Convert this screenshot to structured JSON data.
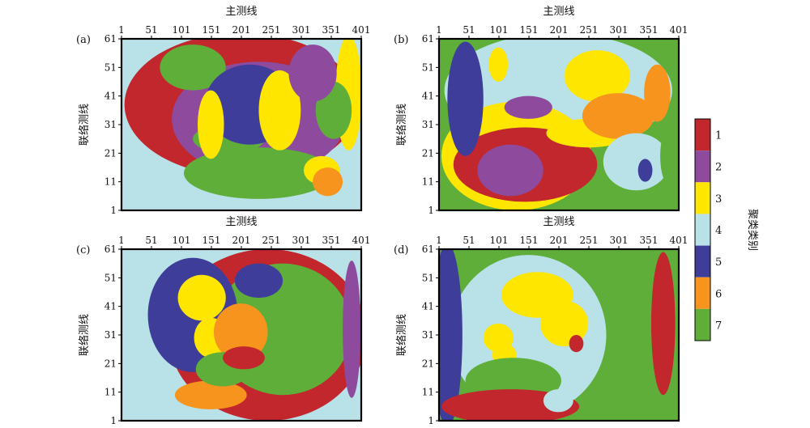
{
  "chart_data": {
    "type": "heatmap",
    "xlabel": "主测线",
    "ylabel": "联络测线",
    "xticks": [
      "1",
      "51",
      "101",
      "151",
      "201",
      "251",
      "301",
      "351",
      "401"
    ],
    "yticks": [
      "1",
      "11",
      "21",
      "31",
      "41",
      "51",
      "61"
    ],
    "xlim": [
      1,
      401
    ],
    "ylim": [
      1,
      61
    ],
    "legend": {
      "title": "聚类类别",
      "position": "right",
      "classes": [
        {
          "label": "1",
          "color": "#c1272d"
        },
        {
          "label": "2",
          "color": "#8e4b9e"
        },
        {
          "label": "3",
          "color": "#ffe600"
        },
        {
          "label": "4",
          "color": "#b9e1e8"
        },
        {
          "label": "5",
          "color": "#3e3e9a"
        },
        {
          "label": "6",
          "color": "#f7941d"
        },
        {
          "label": "7",
          "color": "#5fae3a"
        }
      ]
    },
    "panels": [
      {
        "label": "(a)",
        "background_class": "4",
        "regions": [
          {
            "class": "1",
            "shape": "ellipse",
            "cx": 201,
            "cy": 38,
            "rx": 195,
            "ry": 25
          },
          {
            "class": "2",
            "shape": "ellipse",
            "cx": 230,
            "cy": 33,
            "rx": 145,
            "ry": 20
          },
          {
            "class": "7",
            "shape": "ellipse",
            "cx": 230,
            "cy": 14,
            "rx": 125,
            "ry": 9
          },
          {
            "class": "7",
            "shape": "ellipse",
            "cx": 120,
            "cy": 51,
            "rx": 55,
            "ry": 8
          },
          {
            "class": "7",
            "shape": "ellipse",
            "cx": 180,
            "cy": 26,
            "rx": 60,
            "ry": 5
          },
          {
            "class": "5",
            "shape": "ellipse",
            "cx": 215,
            "cy": 38,
            "rx": 75,
            "ry": 14
          },
          {
            "class": "3",
            "shape": "ellipse",
            "cx": 380,
            "cy": 42,
            "rx": 22,
            "ry": 20
          },
          {
            "class": "3",
            "shape": "ellipse",
            "cx": 335,
            "cy": 15,
            "rx": 30,
            "ry": 5
          },
          {
            "class": "3",
            "shape": "ellipse",
            "cx": 150,
            "cy": 31,
            "rx": 22,
            "ry": 12
          },
          {
            "class": "3",
            "shape": "ellipse",
            "cx": 265,
            "cy": 36,
            "rx": 35,
            "ry": 14
          },
          {
            "class": "7",
            "shape": "ellipse",
            "cx": 355,
            "cy": 36,
            "rx": 30,
            "ry": 10
          },
          {
            "class": "2",
            "shape": "ellipse",
            "cx": 320,
            "cy": 49,
            "rx": 40,
            "ry": 10
          },
          {
            "class": "6",
            "shape": "ellipse",
            "cx": 345,
            "cy": 11,
            "rx": 25,
            "ry": 5
          }
        ]
      },
      {
        "label": "(b)",
        "background_class": "7",
        "regions": [
          {
            "class": "4",
            "shape": "ellipse",
            "cx": 200,
            "cy": 43,
            "rx": 190,
            "ry": 20
          },
          {
            "class": "3",
            "shape": "ellipse",
            "cx": 130,
            "cy": 20,
            "rx": 125,
            "ry": 19
          },
          {
            "class": "1",
            "shape": "ellipse",
            "cx": 145,
            "cy": 17,
            "rx": 120,
            "ry": 13
          },
          {
            "class": "2",
            "shape": "ellipse",
            "cx": 120,
            "cy": 15,
            "rx": 55,
            "ry": 9
          },
          {
            "class": "5",
            "shape": "ellipse",
            "cx": 45,
            "cy": 40,
            "rx": 30,
            "ry": 20
          },
          {
            "class": "3",
            "shape": "ellipse",
            "cx": 100,
            "cy": 52,
            "rx": 16,
            "ry": 6
          },
          {
            "class": "3",
            "shape": "ellipse",
            "cx": 265,
            "cy": 48,
            "rx": 55,
            "ry": 9
          },
          {
            "class": "3",
            "shape": "ellipse",
            "cx": 250,
            "cy": 28,
            "rx": 70,
            "ry": 5
          },
          {
            "class": "6",
            "shape": "ellipse",
            "cx": 300,
            "cy": 34,
            "rx": 60,
            "ry": 8
          },
          {
            "class": "6",
            "shape": "ellipse",
            "cx": 365,
            "cy": 42,
            "rx": 22,
            "ry": 10
          },
          {
            "class": "4",
            "shape": "ellipse",
            "cx": 330,
            "cy": 18,
            "rx": 55,
            "ry": 10
          },
          {
            "class": "5",
            "shape": "ellipse",
            "cx": 345,
            "cy": 15,
            "rx": 12,
            "ry": 4
          },
          {
            "class": "2",
            "shape": "ellipse",
            "cx": 150,
            "cy": 37,
            "rx": 40,
            "ry": 4
          },
          {
            "class": "7",
            "shape": "ellipse",
            "cx": 385,
            "cy": 20,
            "rx": 15,
            "ry": 10
          }
        ]
      },
      {
        "label": "(c)",
        "background_class": "4",
        "regions": [
          {
            "class": "1",
            "shape": "ellipse",
            "cx": 245,
            "cy": 31,
            "rx": 165,
            "ry": 30
          },
          {
            "class": "7",
            "shape": "ellipse",
            "cx": 270,
            "cy": 33,
            "rx": 115,
            "ry": 23
          },
          {
            "class": "2",
            "shape": "ellipse",
            "cx": 385,
            "cy": 33,
            "rx": 15,
            "ry": 24
          },
          {
            "class": "5",
            "shape": "ellipse",
            "cx": 120,
            "cy": 38,
            "rx": 75,
            "ry": 20
          },
          {
            "class": "3",
            "shape": "ellipse",
            "cx": 135,
            "cy": 44,
            "rx": 40,
            "ry": 8
          },
          {
            "class": "3",
            "shape": "ellipse",
            "cx": 150,
            "cy": 30,
            "rx": 28,
            "ry": 7
          },
          {
            "class": "6",
            "shape": "ellipse",
            "cx": 200,
            "cy": 32,
            "rx": 45,
            "ry": 10
          },
          {
            "class": "6",
            "shape": "ellipse",
            "cx": 150,
            "cy": 10,
            "rx": 60,
            "ry": 5
          },
          {
            "class": "7",
            "shape": "ellipse",
            "cx": 170,
            "cy": 19,
            "rx": 45,
            "ry": 6
          },
          {
            "class": "1",
            "shape": "ellipse",
            "cx": 205,
            "cy": 23,
            "rx": 35,
            "ry": 4
          },
          {
            "class": "5",
            "shape": "ellipse",
            "cx": 230,
            "cy": 50,
            "rx": 40,
            "ry": 6
          }
        ]
      },
      {
        "label": "(d)",
        "background_class": "7",
        "regions": [
          {
            "class": "4",
            "shape": "ellipse",
            "cx": 150,
            "cy": 31,
            "rx": 130,
            "ry": 28
          },
          {
            "class": "5",
            "shape": "ellipse",
            "cx": 15,
            "cy": 31,
            "rx": 25,
            "ry": 32
          },
          {
            "class": "3",
            "shape": "ellipse",
            "cx": 165,
            "cy": 45,
            "rx": 60,
            "ry": 8
          },
          {
            "class": "3",
            "shape": "ellipse",
            "cx": 210,
            "cy": 35,
            "rx": 40,
            "ry": 8
          },
          {
            "class": "3",
            "shape": "ellipse",
            "cx": 100,
            "cy": 30,
            "rx": 25,
            "ry": 5
          },
          {
            "class": "3",
            "shape": "ellipse",
            "cx": 110,
            "cy": 24,
            "rx": 20,
            "ry": 4
          },
          {
            "class": "7",
            "shape": "ellipse",
            "cx": 125,
            "cy": 15,
            "rx": 80,
            "ry": 8
          },
          {
            "class": "1",
            "shape": "ellipse",
            "cx": 120,
            "cy": 6,
            "rx": 115,
            "ry": 6
          },
          {
            "class": "1",
            "shape": "ellipse",
            "cx": 375,
            "cy": 35,
            "rx": 20,
            "ry": 25
          },
          {
            "class": "1",
            "shape": "ellipse",
            "cx": 230,
            "cy": 28,
            "rx": 12,
            "ry": 3
          },
          {
            "class": "4",
            "shape": "ellipse",
            "cx": 200,
            "cy": 8,
            "rx": 25,
            "ry": 4
          }
        ]
      }
    ]
  }
}
